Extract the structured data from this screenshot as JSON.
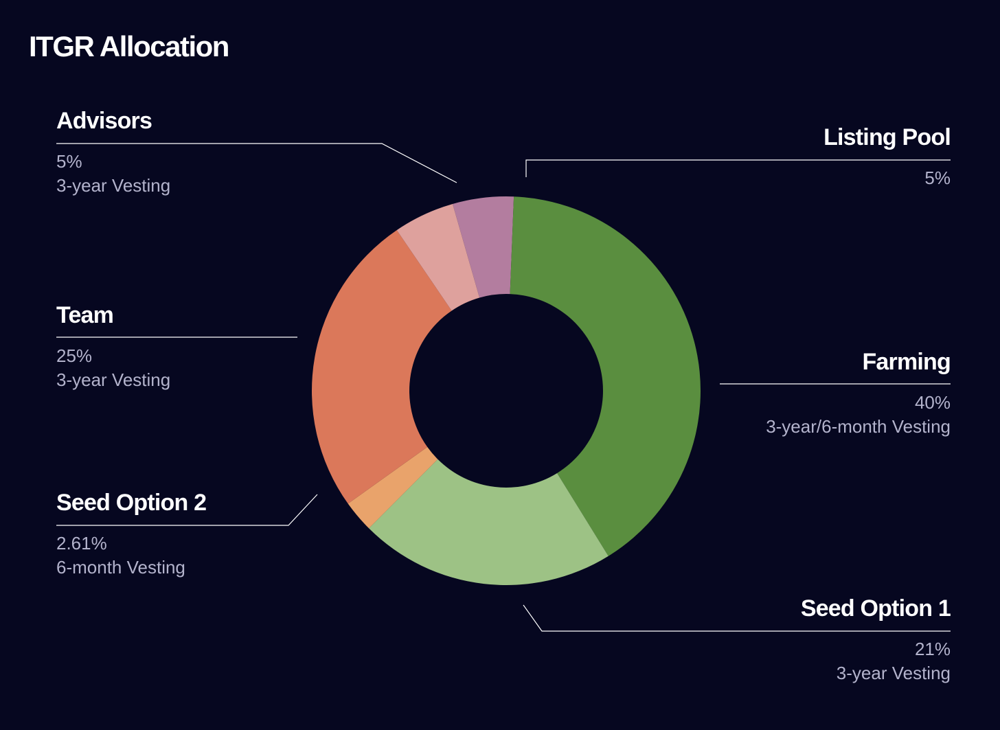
{
  "title": "ITGR Allocation",
  "colors": {
    "background": "#060720",
    "leader_line": "#ffffff",
    "label_text": "#ffffff",
    "sub_text": "#b3b3cc"
  },
  "chart_data": {
    "type": "pie",
    "variant": "donut",
    "title": "ITGR Allocation",
    "slices": [
      {
        "label": "Listing Pool",
        "value": 5,
        "value_label": "5%",
        "note": "",
        "color": "#b37d9f"
      },
      {
        "label": "Farming",
        "value": 40,
        "value_label": "40%",
        "note": "3-year/6-month Vesting",
        "color": "#5a8e3f"
      },
      {
        "label": "Seed Option 1",
        "value": 21,
        "value_label": "21%",
        "note": "3-year Vesting",
        "color": "#9dc285"
      },
      {
        "label": "Seed Option 2",
        "value": 2.61,
        "value_label": "2.61%",
        "note": "6-month Vesting",
        "color": "#e9a36b"
      },
      {
        "label": "Team",
        "value": 25,
        "value_label": "25%",
        "note": "3-year Vesting",
        "color": "#db785a"
      },
      {
        "label": "Advisors",
        "value": 5,
        "value_label": "5%",
        "note": "3-year Vesting",
        "color": "#dea19d"
      }
    ]
  }
}
